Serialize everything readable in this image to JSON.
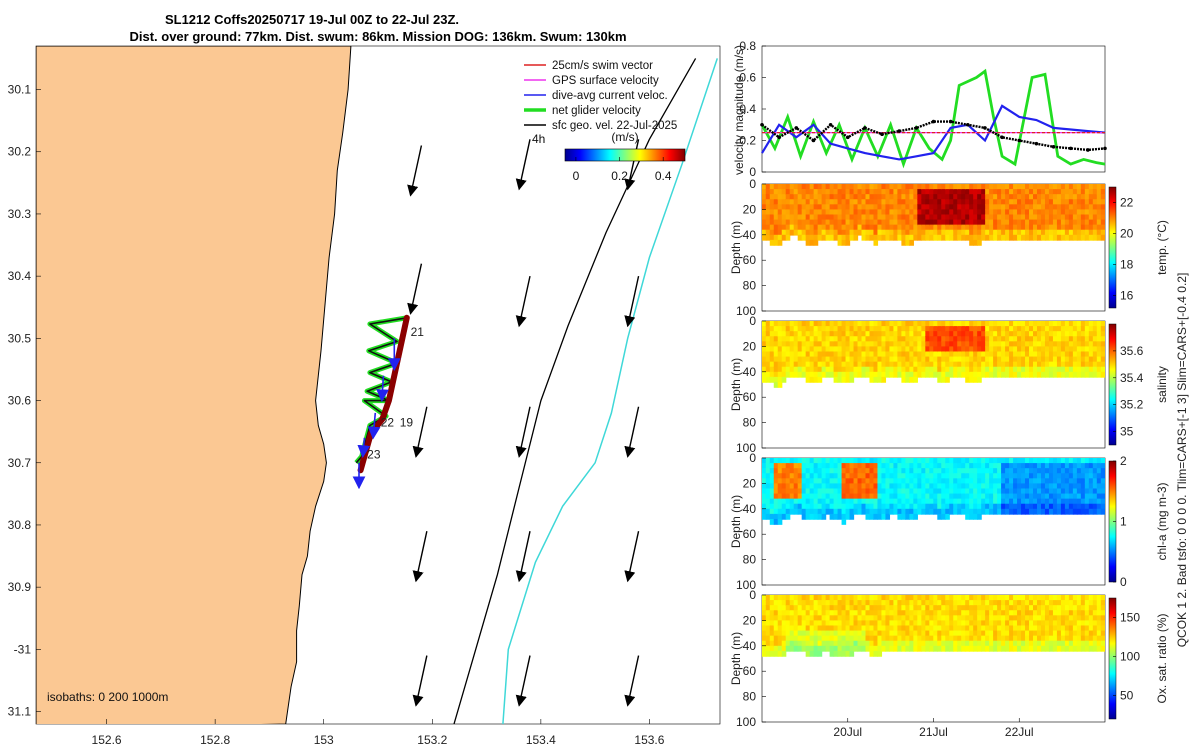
{
  "title": {
    "line1": "SL1212 Coffs20250717 19-Jul 00Z to 22-Jul 23Z.",
    "line2": "Dist. over ground: 77km. Dist. swum: 86km. Mission DOG: 136km. Swum: 130km"
  },
  "colors": {
    "land": "#fbc893",
    "ocean": "#ffffff",
    "track": "#8b0000",
    "cyan_isobath": "#3fd8d8",
    "black_isobath": "#000000",
    "net_velocity": "#22dd22",
    "dive_avg": "#2222ee",
    "gps": "#ee33ee",
    "swim": "#dd2222",
    "geo": "#000000"
  },
  "chart_data": [
    {
      "id": "track_map",
      "type": "map",
      "xlim": [
        152.47,
        153.73
      ],
      "ylim": [
        -31.12,
        -30.03
      ],
      "x_ticks": [
        152.6,
        152.8,
        153,
        153.2,
        153.4,
        153.6
      ],
      "x_tick_labels": [
        "152.6",
        "152.8",
        "153",
        "153.2",
        "153.4",
        "153.6"
      ],
      "y_ticks": [
        -30.1,
        -30.2,
        -30.3,
        -30.4,
        -30.5,
        -30.6,
        -30.7,
        -30.8,
        -30.9,
        -31,
        -31.1
      ],
      "y_tick_labels": [
        "30.1",
        "30.2",
        "30.3",
        "30.4",
        "30.5",
        "30.6",
        "30.7",
        "30.8",
        "30.9",
        "-31",
        "31.1"
      ],
      "legend": {
        "position": "top-right",
        "entries": [
          {
            "label": "25cm/s swim vector",
            "color": "#dd2222"
          },
          {
            "label": "GPS surface velocity",
            "color": "#ee33ee"
          },
          {
            "label": "dive-avg current veloc.",
            "color": "#2222ee"
          },
          {
            "label": "net glider velocity",
            "color": "#22dd22"
          },
          {
            "label": "sfc geo. vel. 22-Jul-2025",
            "color": "#000000"
          }
        ]
      },
      "colorbar": {
        "label": "(m/s)",
        "clim": [
          -0.05,
          0.5
        ],
        "ticks": [
          0,
          0.2,
          0.4
        ],
        "tick_labels": [
          "0",
          "0.2",
          "0.4"
        ],
        "interval_label": "4h"
      },
      "isobath_label": "isobaths: 0   200  1000m",
      "coastline": [
        [
          153.05,
          -30.03
        ],
        [
          153.045,
          -30.1
        ],
        [
          153.035,
          -30.17
        ],
        [
          153.025,
          -30.23
        ],
        [
          153.02,
          -30.3
        ],
        [
          153.01,
          -30.37
        ],
        [
          153.005,
          -30.42
        ],
        [
          153.0,
          -30.47
        ],
        [
          152.995,
          -30.52
        ],
        [
          152.99,
          -30.56
        ],
        [
          152.985,
          -30.6
        ],
        [
          152.99,
          -30.64
        ],
        [
          153.0,
          -30.67
        ],
        [
          153.005,
          -30.7
        ],
        [
          153.0,
          -30.73
        ],
        [
          152.985,
          -30.77
        ],
        [
          152.975,
          -30.81
        ],
        [
          152.97,
          -30.85
        ],
        [
          152.96,
          -30.88
        ],
        [
          152.955,
          -30.93
        ],
        [
          152.95,
          -30.97
        ],
        [
          152.95,
          -31.02
        ],
        [
          152.94,
          -31.06
        ],
        [
          152.93,
          -31.12
        ]
      ],
      "isobath_200m": [
        [
          153.685,
          -30.05
        ],
        [
          153.6,
          -30.18
        ],
        [
          153.52,
          -30.33
        ],
        [
          153.45,
          -30.48
        ],
        [
          153.4,
          -30.6
        ],
        [
          153.36,
          -30.74
        ],
        [
          153.32,
          -30.88
        ],
        [
          153.28,
          -31.0
        ],
        [
          153.24,
          -31.12
        ]
      ],
      "isobath_1000m": [
        [
          153.725,
          -30.05
        ],
        [
          153.66,
          -30.22
        ],
        [
          153.6,
          -30.37
        ],
        [
          153.56,
          -30.5
        ],
        [
          153.53,
          -30.62
        ],
        [
          153.5,
          -30.7
        ],
        [
          153.44,
          -30.77
        ],
        [
          153.39,
          -30.86
        ],
        [
          153.34,
          -31.0
        ],
        [
          153.33,
          -31.12
        ]
      ],
      "track": [
        [
          153.153,
          -30.467
        ],
        [
          153.12,
          -30.6
        ],
        [
          153.108,
          -30.63
        ],
        [
          153.087,
          -30.653
        ],
        [
          153.068,
          -30.712
        ]
      ],
      "track_zigzag": [
        [
          153.153,
          -30.467
        ],
        [
          153.085,
          -30.477
        ],
        [
          153.135,
          -30.505
        ],
        [
          153.083,
          -30.52
        ],
        [
          153.135,
          -30.54
        ],
        [
          153.085,
          -30.555
        ],
        [
          153.125,
          -30.57
        ],
        [
          153.08,
          -30.585
        ],
        [
          153.12,
          -30.6
        ],
        [
          153.075,
          -30.6
        ],
        [
          153.115,
          -30.625
        ],
        [
          153.085,
          -30.64
        ],
        [
          153.07,
          -30.69
        ],
        [
          153.06,
          -30.7
        ]
      ],
      "day_markers": [
        {
          "label": "21",
          "lon": 153.16,
          "lat": -30.49
        },
        {
          "label": "19",
          "lon": 153.14,
          "lat": -30.635
        },
        {
          "label": "22",
          "lon": 153.105,
          "lat": -30.635
        },
        {
          "label": "23",
          "lon": 153.08,
          "lat": -30.687
        }
      ],
      "dive_vectors": [
        [
          153.13,
          -30.5,
          0.0,
          -0.05
        ],
        [
          153.11,
          -30.56,
          -0.003,
          -0.04
        ],
        [
          153.095,
          -30.62,
          -0.004,
          -0.04
        ],
        [
          153.075,
          -30.66,
          -0.003,
          -0.03
        ],
        [
          153.065,
          -30.7,
          0.0,
          -0.04
        ]
      ],
      "geo_vectors": [
        [
          153.18,
          -30.19,
          -0.02,
          -0.08
        ],
        [
          153.38,
          -30.18,
          -0.02,
          -0.08
        ],
        [
          153.58,
          -30.18,
          -0.02,
          -0.08
        ],
        [
          153.18,
          -30.38,
          -0.02,
          -0.08
        ],
        [
          153.38,
          -30.4,
          -0.02,
          -0.08
        ],
        [
          153.58,
          -30.4,
          -0.02,
          -0.08
        ],
        [
          153.19,
          -30.61,
          -0.02,
          -0.08
        ],
        [
          153.38,
          -30.61,
          -0.02,
          -0.08
        ],
        [
          153.58,
          -30.61,
          -0.02,
          -0.08
        ],
        [
          153.19,
          -30.81,
          -0.02,
          -0.08
        ],
        [
          153.38,
          -30.81,
          -0.02,
          -0.08
        ],
        [
          153.58,
          -30.81,
          -0.02,
          -0.08
        ],
        [
          153.19,
          -31.01,
          -0.02,
          -0.08
        ],
        [
          153.38,
          -31.01,
          -0.02,
          -0.08
        ],
        [
          153.58,
          -31.01,
          -0.02,
          -0.08
        ]
      ]
    },
    {
      "id": "velocity_panel",
      "type": "line",
      "ylabel": "velocity magnitude (m/s)",
      "xlim": [
        19.0,
        23.0
      ],
      "ylim": [
        0,
        0.8
      ],
      "y_ticks": [
        0,
        0.2,
        0.4,
        0.6,
        0.8
      ],
      "y_tick_labels": [
        "0",
        "0.2",
        "0.4",
        "0.6",
        "0.8"
      ],
      "series": [
        {
          "name": "net glider velocity",
          "color": "#22dd22",
          "x": [
            19.0,
            19.15,
            19.3,
            19.45,
            19.6,
            19.75,
            19.9,
            20.05,
            20.2,
            20.35,
            20.5,
            20.65,
            20.8,
            20.95,
            21.1,
            21.2,
            21.3,
            21.5,
            21.6,
            21.7,
            21.8,
            21.95,
            22.15,
            22.3,
            22.45,
            22.6,
            22.75,
            22.9,
            23.0
          ],
          "y": [
            0.3,
            0.15,
            0.35,
            0.1,
            0.32,
            0.12,
            0.3,
            0.08,
            0.28,
            0.1,
            0.3,
            0.05,
            0.28,
            0.15,
            0.08,
            0.2,
            0.55,
            0.6,
            0.64,
            0.35,
            0.1,
            0.05,
            0.6,
            0.62,
            0.1,
            0.05,
            0.08,
            0.06,
            0.05
          ]
        },
        {
          "name": "dive-avg current veloc.",
          "color": "#2222ee",
          "x": [
            19.0,
            19.2,
            19.4,
            19.6,
            19.8,
            20.0,
            20.2,
            20.4,
            20.6,
            20.8,
            21.0,
            21.2,
            21.4,
            21.6,
            21.8,
            22.0,
            22.2,
            22.4,
            22.6,
            22.8,
            23.0
          ],
          "y": [
            0.12,
            0.3,
            0.22,
            0.3,
            0.18,
            0.15,
            0.12,
            0.1,
            0.08,
            0.1,
            0.12,
            0.28,
            0.3,
            0.2,
            0.42,
            0.35,
            0.33,
            0.28,
            0.27,
            0.26,
            0.25
          ]
        },
        {
          "name": "GPS surface velocity",
          "color": "#ee33ee",
          "x": [
            19.0,
            23.0
          ],
          "y": [
            0.25,
            0.25
          ]
        },
        {
          "name": "25cm/s swim vector",
          "color": "#dd2222",
          "x": [
            19.0,
            23.0
          ],
          "y": [
            0.25,
            0.25
          ]
        },
        {
          "name": "sfc geo. vel.",
          "color": "#000000",
          "x": [
            19.0,
            19.2,
            19.4,
            19.6,
            19.8,
            20.0,
            20.2,
            20.4,
            20.6,
            20.8,
            21.0,
            21.2,
            21.4,
            21.6,
            21.8,
            22.0,
            22.2,
            22.4,
            22.6,
            22.8,
            23.0
          ],
          "y": [
            0.3,
            0.22,
            0.28,
            0.2,
            0.3,
            0.22,
            0.28,
            0.24,
            0.26,
            0.28,
            0.32,
            0.32,
            0.3,
            0.28,
            0.22,
            0.2,
            0.18,
            0.16,
            0.15,
            0.14,
            0.15
          ]
        }
      ]
    },
    {
      "id": "temperature_section",
      "type": "heatmap",
      "ylabel": "Depth (m)",
      "colorbar_label": "temp. (°C)",
      "clim": [
        15.2,
        23.0
      ],
      "colorbar_ticks": [
        16,
        18,
        20,
        22
      ],
      "colorbar_tick_labels": [
        "16",
        "18",
        "20",
        "22"
      ],
      "ylim": [
        0,
        100
      ],
      "y_ticks": [
        0,
        20,
        40,
        60,
        80,
        100
      ],
      "y_tick_labels": [
        "0",
        "20",
        "40",
        "60",
        "80",
        "100"
      ],
      "base_value": 21.0,
      "max_depth": [
        42,
        47,
        38,
        46,
        40,
        47,
        39,
        45,
        40,
        46,
        41,
        44,
        42,
        45,
        42,
        44,
        41,
        43,
        42,
        41,
        40,
        42
      ],
      "highlights": [
        {
          "t0": 20.8,
          "t1": 21.6,
          "d0": 2,
          "d1": 28,
          "value": 22.6
        }
      ]
    },
    {
      "id": "salinity_section",
      "type": "heatmap",
      "ylabel": "Depth (m)",
      "colorbar_label": "salinity",
      "clim": [
        34.9,
        35.8
      ],
      "colorbar_ticks": [
        35,
        35.2,
        35.4,
        35.6
      ],
      "colorbar_tick_labels": [
        "35",
        "35.2",
        "35.4",
        "35.6"
      ],
      "ylim": [
        0,
        100
      ],
      "y_ticks": [
        0,
        20,
        40,
        60,
        80,
        100
      ],
      "y_tick_labels": [
        "0",
        "20",
        "40",
        "60",
        "80",
        "100"
      ],
      "base_value": 35.5,
      "max_depth": [
        44,
        49,
        40,
        47,
        42,
        48,
        41,
        46,
        42,
        46,
        42,
        45,
        43,
        45,
        42,
        44,
        42,
        43,
        42,
        41,
        41,
        42
      ],
      "highlights": [
        {
          "t0": 20.9,
          "t1": 21.6,
          "d0": 2,
          "d1": 22,
          "value": 35.62
        }
      ]
    },
    {
      "id": "chla_section",
      "type": "heatmap",
      "ylabel": "Depth (m)",
      "colorbar_label": "chl-a (mg m-3)",
      "clim": [
        0,
        2
      ],
      "colorbar_ticks": [
        0,
        1,
        2
      ],
      "colorbar_tick_labels": [
        "0",
        "1",
        "2"
      ],
      "ylim": [
        0,
        100
      ],
      "y_ticks": [
        0,
        20,
        40,
        60,
        80,
        100
      ],
      "y_tick_labels": [
        "0",
        "20",
        "40",
        "60",
        "80",
        "100"
      ],
      "base_value": 0.75,
      "max_depth": [
        45,
        50,
        41,
        48,
        43,
        49,
        42,
        47,
        43,
        47,
        42,
        45,
        43,
        45,
        42,
        44,
        42,
        43,
        42,
        41,
        41,
        42
      ],
      "highlights": [
        {
          "t0": 19.15,
          "t1": 19.45,
          "d0": 2,
          "d1": 30,
          "value": 1.5
        },
        {
          "t0": 19.95,
          "t1": 20.35,
          "d0": 2,
          "d1": 28,
          "value": 1.55
        },
        {
          "t0": 21.8,
          "t1": 23.0,
          "d0": 2,
          "d1": 40,
          "value": 0.55
        }
      ]
    },
    {
      "id": "oxygen_section",
      "type": "heatmap",
      "ylabel": "Depth (m)",
      "colorbar_label": "Ox. sat. ratio (%)",
      "clim": [
        20,
        175
      ],
      "colorbar_ticks": [
        50,
        100,
        150
      ],
      "colorbar_tick_labels": [
        "50",
        "100",
        "150"
      ],
      "ylim": [
        0,
        100
      ],
      "y_ticks": [
        0,
        20,
        40,
        60,
        80,
        100
      ],
      "y_tick_labels": [
        "0",
        "20",
        "40",
        "60",
        "80",
        "100"
      ],
      "base_value": 122,
      "max_depth": [
        44,
        48,
        41,
        46,
        43,
        47,
        42,
        45,
        42,
        44,
        42,
        44,
        43,
        44,
        42,
        43,
        42,
        43,
        42,
        41,
        41,
        41
      ],
      "highlights": [
        {
          "t0": 19.3,
          "t1": 20.2,
          "d0": 25,
          "d1": 45,
          "value": 112
        }
      ],
      "x_ticks": [
        20,
        21,
        22
      ],
      "x_tick_labels": [
        "20Jul",
        "21Jul",
        "22Jul"
      ]
    }
  ],
  "side_label": "QCOK 1  2. Bad tsfo: 0  0  0  0. Tlim=CARS+[-1 3] Slim=CARS+[-0.4 0.2]"
}
